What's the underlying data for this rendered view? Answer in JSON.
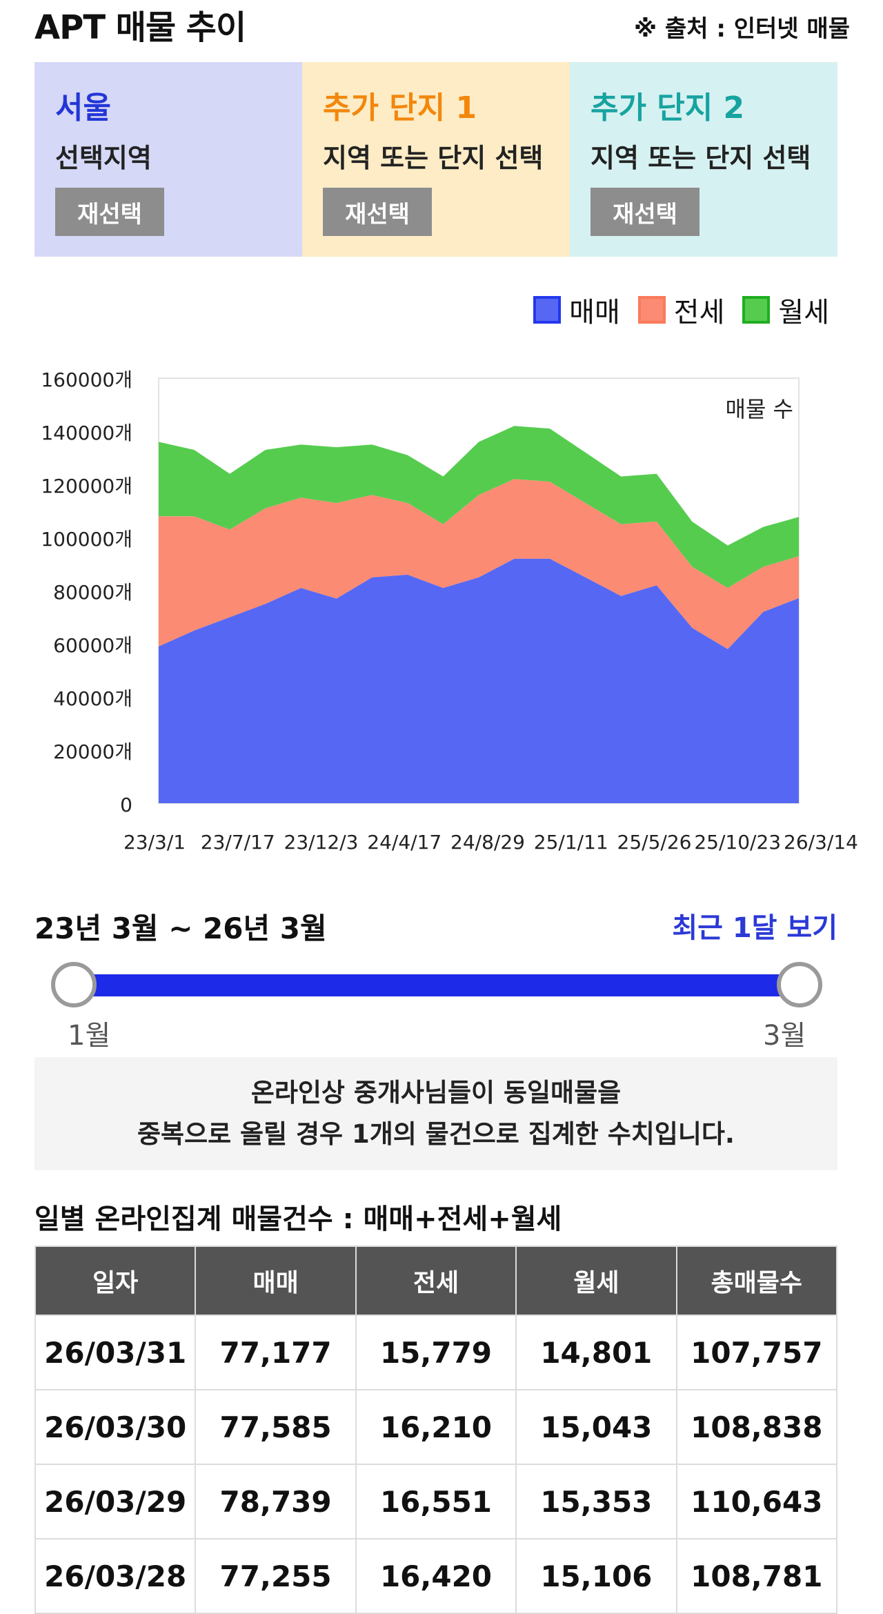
{
  "header": {
    "title": "APT 매물 추이",
    "source": "※ 출처 : 인터넷 매물"
  },
  "panels": [
    {
      "name": "서울",
      "desc": "선택지역",
      "button": "재선택",
      "color": "#2436d6",
      "bg": "#d5d8f7"
    },
    {
      "name": "추가 단지 1",
      "desc": "지역 또는 단지 선택",
      "button": "재선택",
      "color": "#f2870c",
      "bg": "#fdecc5"
    },
    {
      "name": "추가 단지 2",
      "desc": "지역 또는 단지 선택",
      "button": "재선택",
      "color": "#17a3a0",
      "bg": "#d6f1f1"
    }
  ],
  "legend": [
    {
      "label": "매매",
      "color": "#2438ee"
    },
    {
      "label": "전세",
      "color": "#fb7a5a"
    },
    {
      "label": "월세",
      "color": "#1fae1f"
    }
  ],
  "chart_data": {
    "type": "area",
    "stacked": true,
    "annotation": "매물 수",
    "ylim": [
      0,
      160000
    ],
    "y_ticks": [
      "160000개",
      "140000개",
      "120000개",
      "100000개",
      "80000개",
      "60000개",
      "40000개",
      "20000개",
      "0"
    ],
    "x_ticks": [
      "23/3/1",
      "23/7/17",
      "23/12/3",
      "24/4/17",
      "24/8/29",
      "25/1/11",
      "25/5/26",
      "25/10/23",
      "26/3/14"
    ],
    "x": [
      "23/3/1",
      "23/5/1",
      "23/7/17",
      "23/9/15",
      "23/12/3",
      "24/2/1",
      "24/4/17",
      "24/6/20",
      "24/8/29",
      "24/10/20",
      "25/1/11",
      "25/3/20",
      "25/5/26",
      "25/8/1",
      "25/10/23",
      "25/12/20",
      "26/2/10",
      "26/3/14",
      "26/3/31"
    ],
    "series": [
      {
        "name": "매매",
        "color": "#5668f3",
        "values": [
          59000,
          65000,
          70000,
          75000,
          81000,
          77000,
          85000,
          86000,
          81000,
          85000,
          92000,
          92000,
          85000,
          78000,
          82000,
          66000,
          58000,
          72000,
          77177
        ]
      },
      {
        "name": "전세",
        "color": "#fb8b72",
        "values": [
          49000,
          43000,
          33000,
          36000,
          34000,
          36000,
          31000,
          27000,
          24000,
          31000,
          30000,
          29000,
          28000,
          27000,
          24000,
          23000,
          23000,
          17000,
          15779
        ]
      },
      {
        "name": "월세",
        "color": "#56cc4f",
        "values": [
          28000,
          25000,
          21000,
          22000,
          20000,
          21000,
          19000,
          18000,
          18000,
          20000,
          20000,
          20000,
          19000,
          18000,
          18000,
          17000,
          16000,
          15000,
          14801
        ]
      }
    ]
  },
  "range": {
    "label": "23년 3월 ~ 26년 3월",
    "recent_link": "최근 1달 보기",
    "min_label": "1월",
    "max_label": "3월"
  },
  "notice": {
    "line1": "온라인상 중개사님들이 동일매물을",
    "line2": "중복으로 올릴 경우 1개의 물건으로 집계한 수치입니다."
  },
  "table": {
    "title": "일별 온라인집계 매물건수 : 매매+전세+월세",
    "headers": [
      "일자",
      "매매",
      "전세",
      "월세",
      "총매물수"
    ],
    "rows": [
      [
        "26/03/31",
        "77,177",
        "15,779",
        "14,801",
        "107,757"
      ],
      [
        "26/03/30",
        "77,585",
        "16,210",
        "15,043",
        "108,838"
      ],
      [
        "26/03/29",
        "78,739",
        "16,551",
        "15,353",
        "110,643"
      ],
      [
        "26/03/28",
        "77,255",
        "16,420",
        "15,106",
        "108,781"
      ]
    ]
  }
}
